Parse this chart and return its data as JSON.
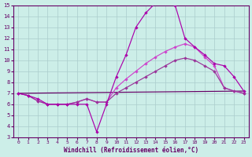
{
  "xlabel": "Windchill (Refroidissement éolien,°C)",
  "xlim": [
    -0.5,
    23.5
  ],
  "ylim": [
    3,
    15
  ],
  "xticks": [
    0,
    1,
    2,
    3,
    4,
    5,
    6,
    7,
    8,
    9,
    10,
    11,
    12,
    13,
    14,
    15,
    16,
    17,
    18,
    19,
    20,
    21,
    22,
    23
  ],
  "yticks": [
    3,
    4,
    5,
    6,
    7,
    8,
    9,
    10,
    11,
    12,
    13,
    14,
    15
  ],
  "bg_color": "#cceee8",
  "grid_color": "#aacccc",
  "line1_color": "#aa00aa",
  "line2_color": "#cc44cc",
  "line3_color": "#660066",
  "line4_color": "#993399",
  "line1_x": [
    0,
    1,
    2,
    3,
    4,
    5,
    6,
    7,
    8,
    9,
    10,
    11,
    12,
    13,
    14,
    15,
    16,
    17,
    18,
    19,
    20,
    21,
    22,
    23
  ],
  "line1_y": [
    7.0,
    6.8,
    6.5,
    6.0,
    6.0,
    6.0,
    6.0,
    6.0,
    3.5,
    6.0,
    8.5,
    10.5,
    13.0,
    14.3,
    15.2,
    15.5,
    15.0,
    12.0,
    11.2,
    10.5,
    9.7,
    9.5,
    8.5,
    7.2
  ],
  "line2_x": [
    0,
    1,
    2,
    3,
    4,
    5,
    6,
    7,
    8,
    9,
    10,
    11,
    12,
    13,
    14,
    15,
    16,
    17,
    18,
    19,
    20,
    21,
    22,
    23
  ],
  "line2_y": [
    7.0,
    6.8,
    6.3,
    6.0,
    6.0,
    6.0,
    6.2,
    6.5,
    6.2,
    6.2,
    7.5,
    8.3,
    9.0,
    9.7,
    10.3,
    10.8,
    11.2,
    11.5,
    11.2,
    10.3,
    9.5,
    7.5,
    7.2,
    7.0
  ],
  "line3_x": [
    0,
    23
  ],
  "line3_y": [
    7.0,
    7.2
  ],
  "line4_x": [
    0,
    1,
    2,
    3,
    4,
    5,
    6,
    7,
    8,
    9,
    10,
    11,
    12,
    13,
    14,
    15,
    16,
    17,
    18,
    19,
    20,
    21,
    22,
    23
  ],
  "line4_y": [
    7.0,
    6.8,
    6.3,
    6.0,
    6.0,
    6.0,
    6.2,
    6.5,
    6.2,
    6.2,
    7.0,
    7.5,
    8.0,
    8.5,
    9.0,
    9.5,
    10.0,
    10.2,
    10.0,
    9.5,
    9.0,
    7.5,
    7.2,
    7.0
  ]
}
